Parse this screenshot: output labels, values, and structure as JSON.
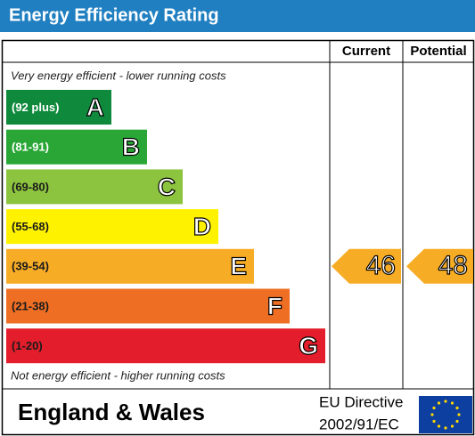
{
  "header": {
    "title": "Energy Efficiency Rating"
  },
  "columns": {
    "current": "Current",
    "potential": "Potential"
  },
  "top_note": "Very energy efficient - lower running costs",
  "bottom_note": "Not energy efficient - higher running costs",
  "bands": [
    {
      "range": "(92 plus)",
      "letter": "A",
      "color": "#0f8a3c",
      "text_color": "#ffffff"
    },
    {
      "range": "(81-91)",
      "letter": "B",
      "color": "#2aa637",
      "text_color": "#ffffff"
    },
    {
      "range": "(69-80)",
      "letter": "C",
      "color": "#8cc43f",
      "text_color": "#1a1a1a"
    },
    {
      "range": "(55-68)",
      "letter": "D",
      "color": "#fff200",
      "text_color": "#1a1a1a"
    },
    {
      "range": "(39-54)",
      "letter": "E",
      "color": "#f7ac26",
      "text_color": "#1a1a1a"
    },
    {
      "range": "(21-38)",
      "letter": "F",
      "color": "#ee6f24",
      "text_color": "#1a1a1a"
    },
    {
      "range": "(1-20)",
      "letter": "G",
      "color": "#e31d2b",
      "text_color": "#1a1a1a"
    }
  ],
  "current": {
    "value": 46,
    "band": 4
  },
  "potential": {
    "value": 48,
    "band": 4
  },
  "footer": {
    "region": "England & Wales",
    "directive": [
      "EU Directive",
      "2002/91/EC"
    ]
  }
}
